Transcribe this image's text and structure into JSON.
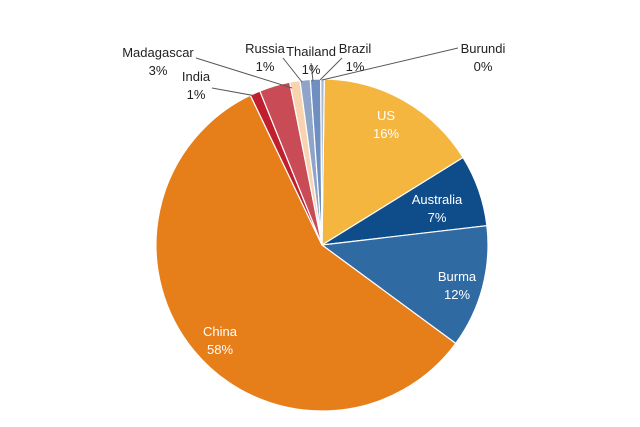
{
  "chart_data": {
    "type": "pie",
    "title": "",
    "start_angle_deg": 0,
    "direction": "clockwise",
    "slices": [
      {
        "name": "US",
        "value": 16,
        "label": "16%",
        "color": "#F4B63F",
        "label_style": "inside"
      },
      {
        "name": "Australia",
        "value": 7,
        "label": "7%",
        "color": "#0E4C8A",
        "label_style": "inside"
      },
      {
        "name": "Burma",
        "value": 12,
        "label": "12%",
        "color": "#2F6AA3",
        "label_style": "inside"
      },
      {
        "name": "China",
        "value": 58,
        "label": "58%",
        "color": "#E67E1A",
        "label_style": "inside"
      },
      {
        "name": "India",
        "value": 1,
        "label": "1%",
        "color": "#C0202E",
        "label_style": "outside"
      },
      {
        "name": "Madagascar",
        "value": 3,
        "label": "3%",
        "color": "#C84B55",
        "label_style": "outside"
      },
      {
        "name": "Russia",
        "value": 1,
        "label": "1%",
        "color": "#F7D3B0",
        "label_style": "outside"
      },
      {
        "name": "Thailand",
        "value": 1,
        "label": "1%",
        "color": "#8EA5C9",
        "label_style": "outside"
      },
      {
        "name": "Brazil",
        "value": 1,
        "label": "1%",
        "color": "#6F8FC0",
        "label_style": "outside"
      },
      {
        "name": "Burundi",
        "value": 0,
        "label": "0%",
        "color": "#A9B9D6",
        "label_style": "outside"
      }
    ],
    "legend": "none"
  }
}
